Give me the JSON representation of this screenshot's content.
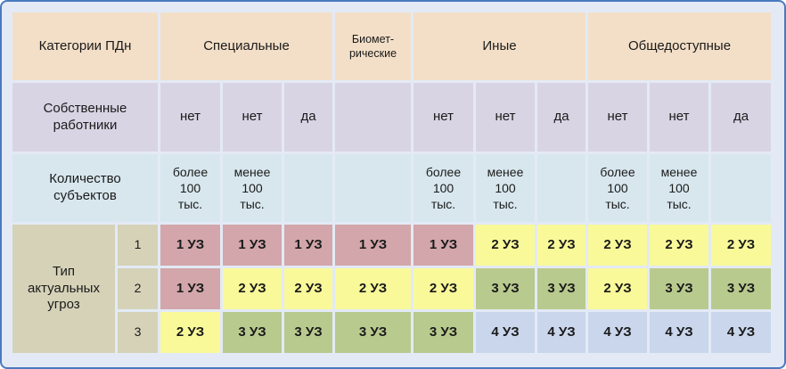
{
  "table_title_cell": "Категории ПДн",
  "category_groups": [
    {
      "label": "Специальные"
    },
    {
      "label": "Биомет-\nрические"
    },
    {
      "label": "Иные"
    },
    {
      "label": "Общедоступные"
    }
  ],
  "own_employees": {
    "label": "Собственные\nработники",
    "values": [
      "нет",
      "нет",
      "да",
      "",
      "нет",
      "нет",
      "да",
      "нет",
      "нет",
      "да"
    ]
  },
  "subjects_count": {
    "label": "Количество\nсубъектов",
    "values": [
      "более\n100\nтыс.",
      "менее\n100\nтыс.",
      "",
      "",
      "более\n100\nтыс.",
      "менее\n100\nтыс.",
      "",
      "более\n100\nтыс.",
      "менее\n100\nтыс.",
      ""
    ]
  },
  "threat_types": {
    "label": "Тип\nактуальных\nугроз",
    "rows": [
      {
        "num": "1",
        "cells": [
          "1 УЗ",
          "1 УЗ",
          "1 УЗ",
          "1 УЗ",
          "1 УЗ",
          "2 УЗ",
          "2 УЗ",
          "2 УЗ",
          "2 УЗ",
          "2 УЗ"
        ]
      },
      {
        "num": "2",
        "cells": [
          "1 УЗ",
          "2 УЗ",
          "2 УЗ",
          "2 УЗ",
          "2 УЗ",
          "3 УЗ",
          "3 УЗ",
          "2 УЗ",
          "3 УЗ",
          "3 УЗ"
        ]
      },
      {
        "num": "3",
        "cells": [
          "2 УЗ",
          "3 УЗ",
          "3 УЗ",
          "3 УЗ",
          "3 УЗ",
          "4 УЗ",
          "4 УЗ",
          "4 УЗ",
          "4 УЗ",
          "4 УЗ"
        ]
      }
    ]
  },
  "colors": {
    "background": "#e3eaf6",
    "frame_border": "#4a79be",
    "header_beige": "#f3dfc7",
    "employees_row_lavender": "#d9d4e4",
    "subjects_row_lightblue": "#d8e7ee",
    "threat_header_tan": "#d5d2b8",
    "uz1_pink": "#d2a6aa",
    "uz2_yellow": "#f9f99a",
    "uz3_green": "#b9ca8e",
    "uz4_blue": "#c9d6ec"
  }
}
